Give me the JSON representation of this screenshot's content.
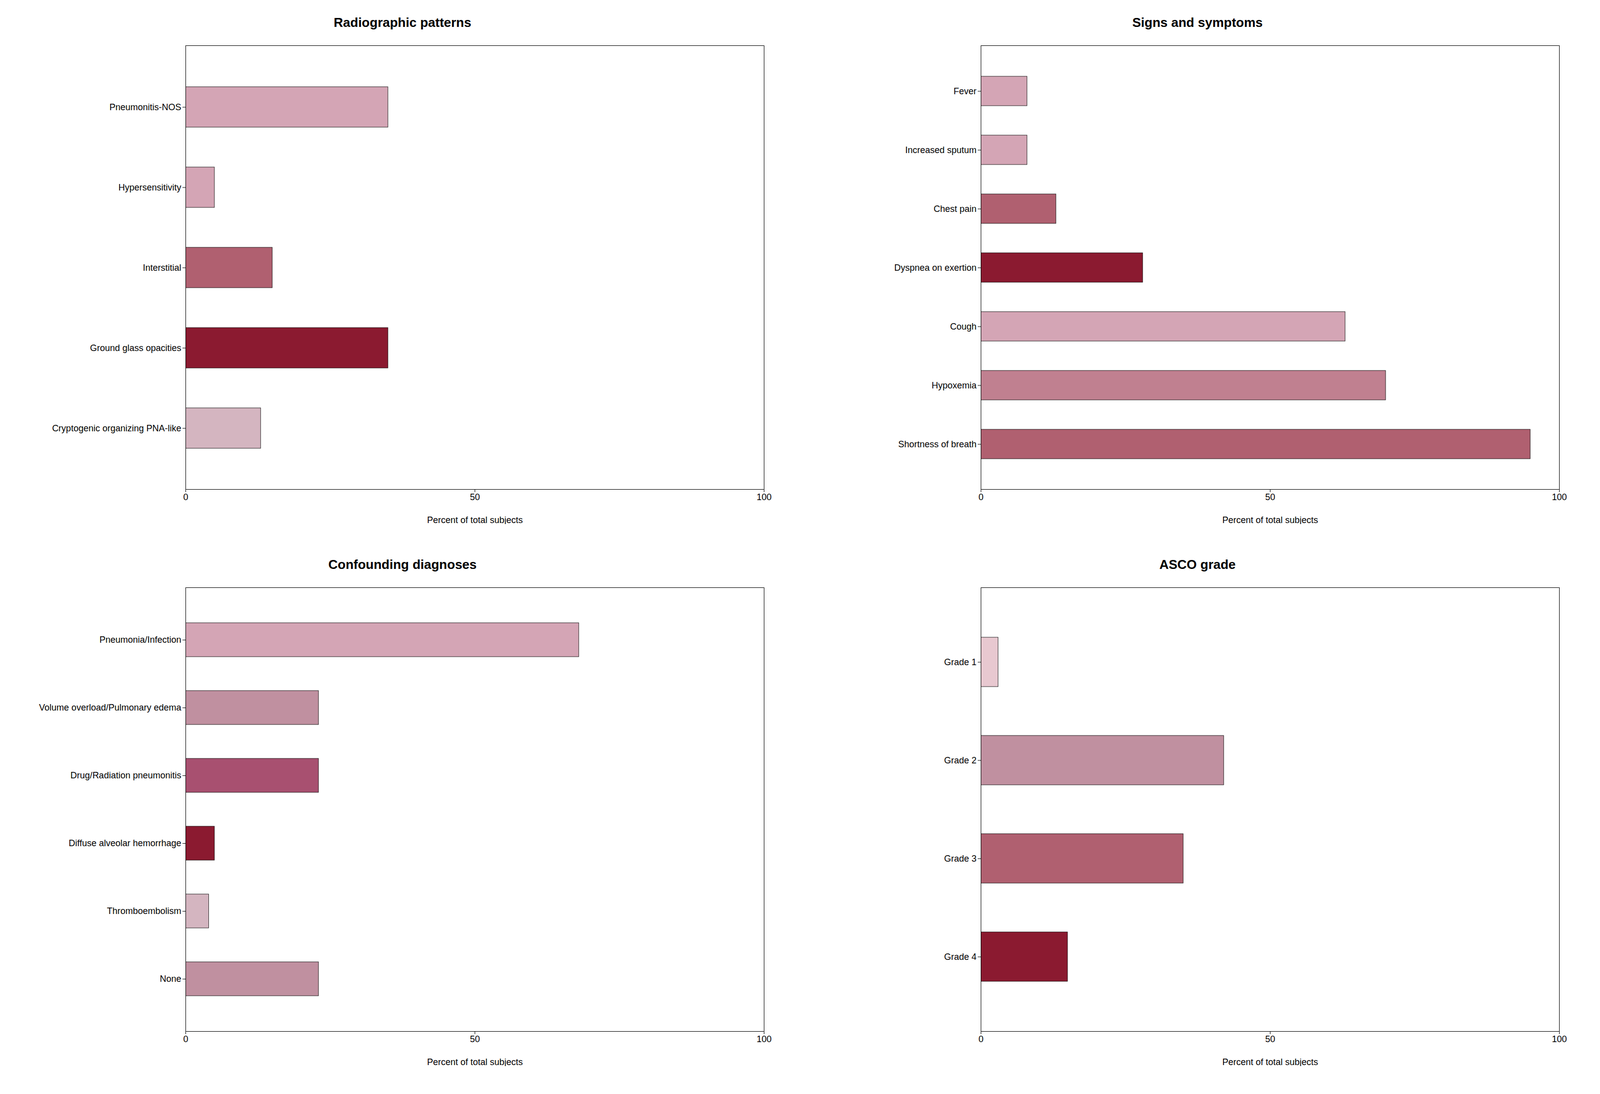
{
  "chart_data": [
    {
      "type": "bar",
      "orientation": "horizontal",
      "title": "Radiographic patterns",
      "categories": [
        "Pneumonitis-NOS",
        "Hypersensitivity",
        "Interstitial",
        "Ground glass opacities",
        "Cryptogenic organizing PNA-like"
      ],
      "values": [
        35,
        5,
        15,
        35,
        13
      ],
      "colors": [
        "#d4a5b5",
        "#d4a5b5",
        "#b06070",
        "#8b1a30",
        "#d4b5c0"
      ],
      "xlabel": "Percent of total subjects",
      "xlim": [
        0,
        100
      ],
      "xticks": [
        0,
        50,
        100
      ]
    },
    {
      "type": "bar",
      "orientation": "horizontal",
      "title": "Signs and symptoms",
      "categories": [
        "Fever",
        "Increased sputum",
        "Chest pain",
        "Dyspnea on exertion",
        "Cough",
        "Hypoxemia",
        "Shortness of breath"
      ],
      "values": [
        8,
        8,
        13,
        28,
        63,
        70,
        95
      ],
      "colors": [
        "#d4a5b5",
        "#d4a5b5",
        "#b06070",
        "#8b1a30",
        "#d4a5b5",
        "#c08090",
        "#b06070"
      ],
      "xlabel": "Percent of total subjects",
      "xlim": [
        0,
        100
      ],
      "xticks": [
        0,
        50,
        100
      ]
    },
    {
      "type": "bar",
      "orientation": "horizontal",
      "title": "Confounding diagnoses",
      "categories": [
        "Pneumonia/Infection",
        "Volume overload/Pulmonary edema",
        "Drug/Radiation pneumonitis",
        "Diffuse alveolar hemorrhage",
        "Thromboembolism",
        "None"
      ],
      "values": [
        68,
        23,
        23,
        5,
        4,
        23
      ],
      "colors": [
        "#d4a5b5",
        "#c090a0",
        "#a85070",
        "#8b1a30",
        "#d4b5c0",
        "#c090a0"
      ],
      "xlabel": "Percent of total subjects",
      "xlim": [
        0,
        100
      ],
      "xticks": [
        0,
        50,
        100
      ]
    },
    {
      "type": "bar",
      "orientation": "horizontal",
      "title": "ASCO grade",
      "categories": [
        "Grade 1",
        "Grade 2",
        "Grade 3",
        "Grade 4"
      ],
      "values": [
        3,
        42,
        35,
        15
      ],
      "colors": [
        "#e8c8d0",
        "#c090a0",
        "#b06070",
        "#8b1a30"
      ],
      "xlabel": "Percent of total subjects",
      "xlim": [
        0,
        100
      ],
      "xticks": [
        0,
        50,
        100
      ]
    }
  ]
}
